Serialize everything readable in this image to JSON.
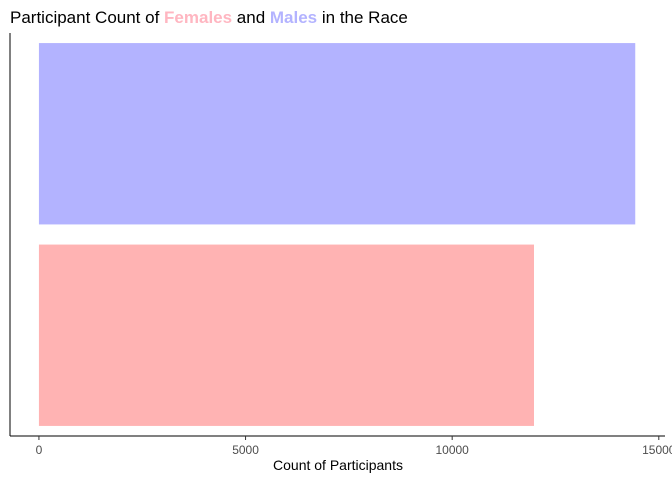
{
  "chart_data": {
    "type": "bar",
    "orientation": "horizontal",
    "title_parts": [
      {
        "text": "Participant Count of ",
        "color": "#000000",
        "bold": false
      },
      {
        "text": "Females",
        "color": "#FFB6C1",
        "bold": true
      },
      {
        "text": " and ",
        "color": "#000000",
        "bold": false
      },
      {
        "text": "Males",
        "color": "#B3B3FF",
        "bold": true
      },
      {
        "text": " in the Race",
        "color": "#000000",
        "bold": false
      }
    ],
    "categories": [
      "Males",
      "Females"
    ],
    "values": [
      14430,
      11980
    ],
    "colors": [
      "#B3B3FF",
      "#FFB3B3"
    ],
    "xlabel": "Count of Participants",
    "ylabel": "",
    "xlim": [
      -700,
      15150
    ],
    "xticks": [
      0,
      5000,
      10000,
      15000
    ],
    "xtick_labels": [
      "0",
      "5000",
      "10000",
      "15000"
    ],
    "grid": false,
    "legend": "none"
  }
}
